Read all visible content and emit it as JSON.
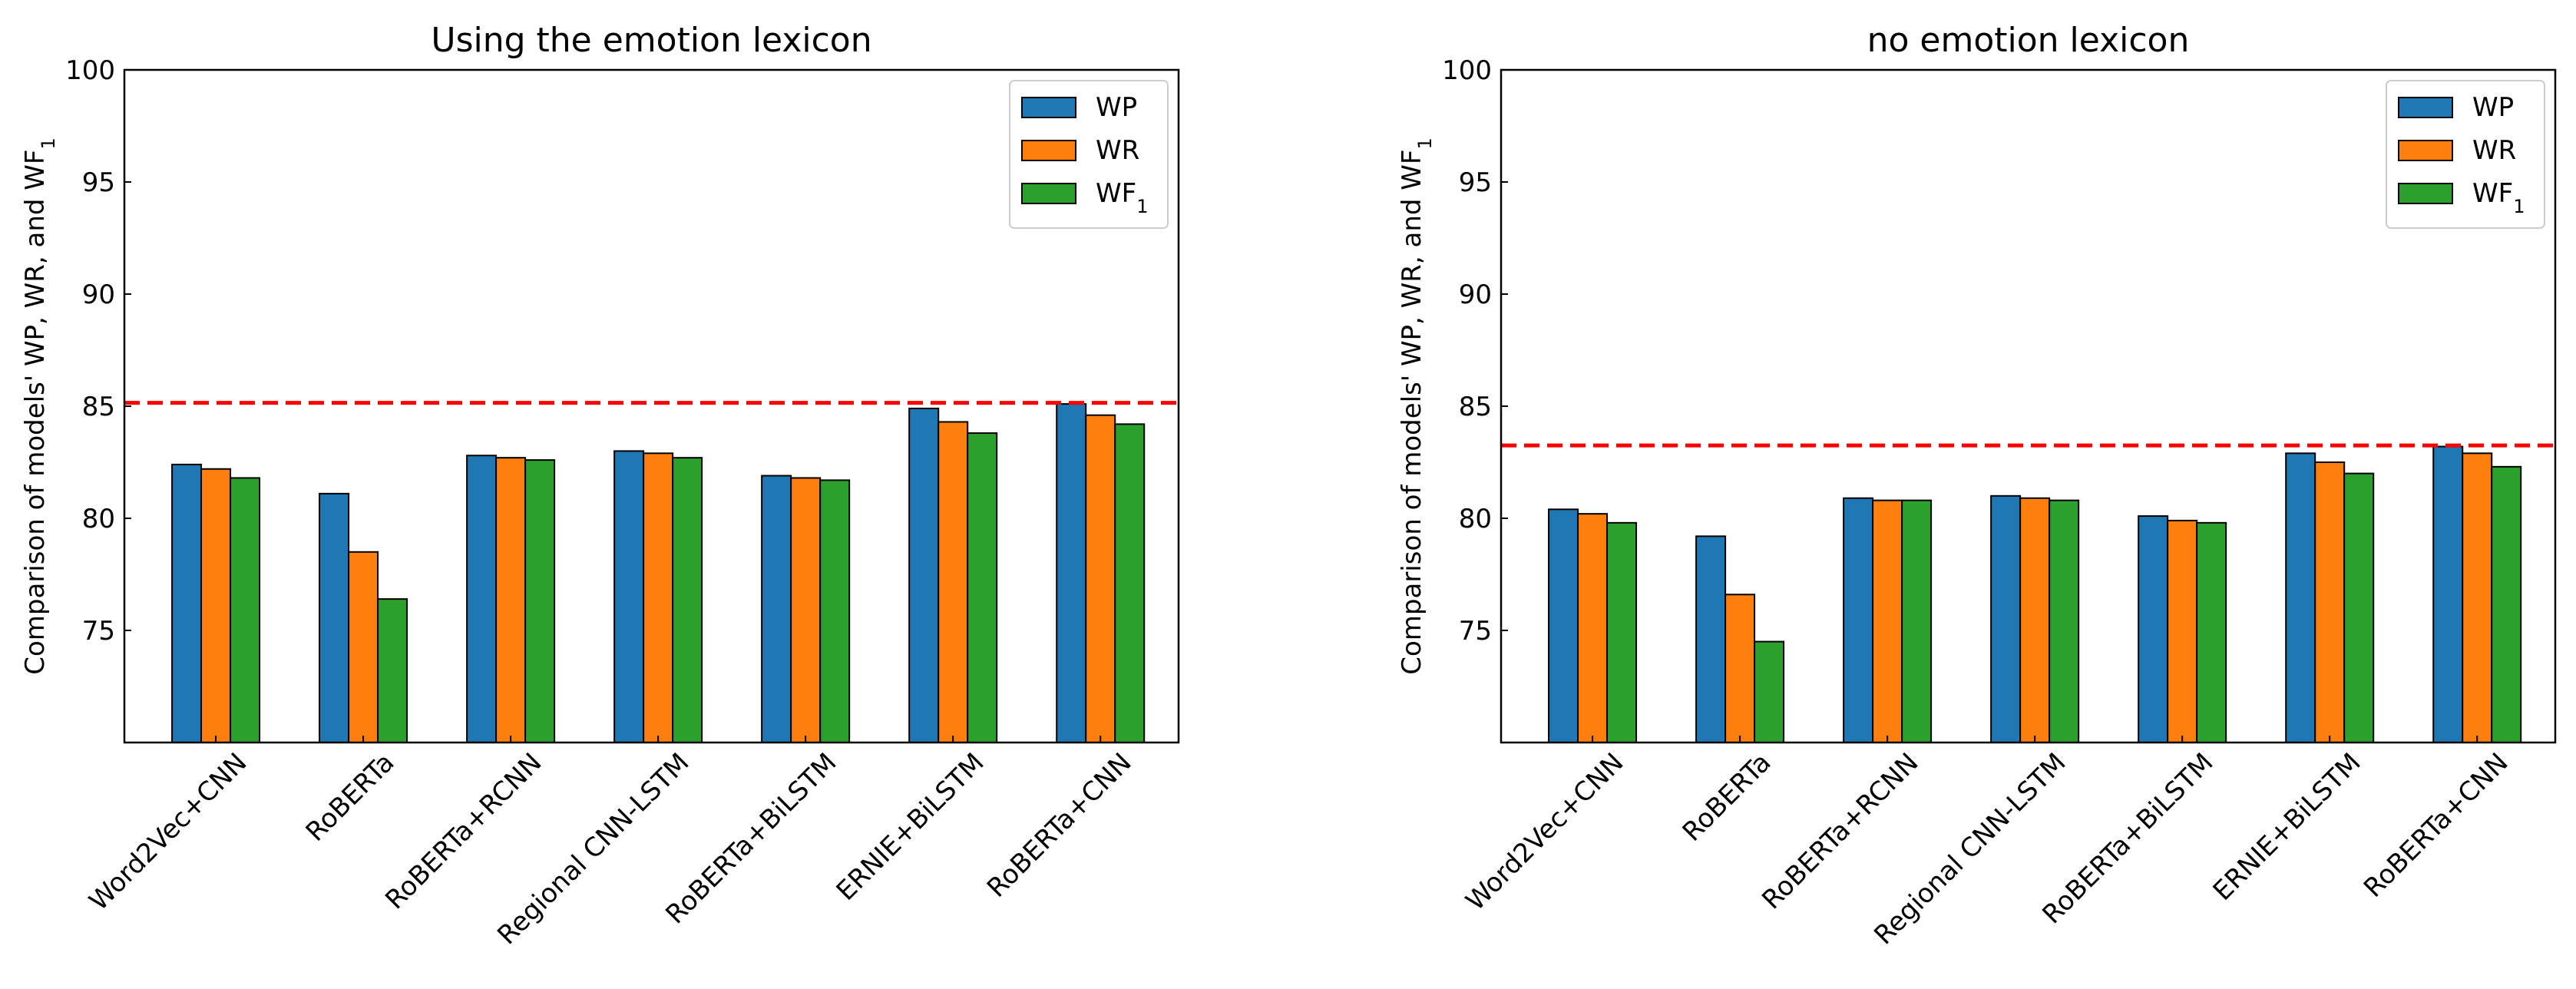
{
  "chart_data": [
    {
      "type": "bar",
      "title": "Using the emotion lexicon",
      "ylabel": "Comparison of models' WP, WR, and WF₁",
      "ylim": [
        70,
        100
      ],
      "yticks": [
        75,
        80,
        85,
        90,
        95,
        100
      ],
      "categories": [
        "Word2Vec+CNN",
        "RoBERTa",
        "RoBERTa+RCNN",
        "Regional CNN-LSTM",
        "RoBERTa+BiLSTM",
        "ERNIE+BiLSTM",
        "RoBERTa+CNN"
      ],
      "series": [
        {
          "name": "WP",
          "color": "#1f77b4",
          "values": [
            82.4,
            81.1,
            82.8,
            83.0,
            81.9,
            84.9,
            85.1
          ]
        },
        {
          "name": "WR",
          "color": "#ff7f0e",
          "values": [
            82.2,
            78.5,
            82.7,
            82.9,
            81.8,
            84.3,
            84.6
          ]
        },
        {
          "name": "WF₁",
          "color": "#2ca02c",
          "values": [
            81.8,
            76.4,
            82.6,
            82.7,
            81.7,
            83.8,
            84.2
          ]
        }
      ],
      "reference_line": {
        "value": 85.15,
        "color": "#ff0000",
        "style": "dashed"
      },
      "legend": "top-right"
    },
    {
      "type": "bar",
      "title": "no emotion lexicon",
      "ylabel": "Comparison of models' WP, WR, and WF₁",
      "ylim": [
        70,
        100
      ],
      "yticks": [
        75,
        80,
        85,
        90,
        95,
        100
      ],
      "categories": [
        "Word2Vec+CNN",
        "RoBERTa",
        "RoBERTa+RCNN",
        "Regional CNN-LSTM",
        "RoBERTa+BiLSTM",
        "ERNIE+BiLSTM",
        "RoBERTa+CNN"
      ],
      "series": [
        {
          "name": "WP",
          "color": "#1f77b4",
          "values": [
            80.4,
            79.2,
            80.9,
            81.0,
            80.1,
            82.9,
            83.2
          ]
        },
        {
          "name": "WR",
          "color": "#ff7f0e",
          "values": [
            80.2,
            76.6,
            80.8,
            80.9,
            79.9,
            82.5,
            82.9
          ]
        },
        {
          "name": "WF₁",
          "color": "#2ca02c",
          "values": [
            79.8,
            74.5,
            80.8,
            80.8,
            79.8,
            82.0,
            82.3
          ]
        }
      ],
      "reference_line": {
        "value": 83.25,
        "color": "#ff0000",
        "style": "dashed"
      },
      "legend": "top-right"
    }
  ]
}
